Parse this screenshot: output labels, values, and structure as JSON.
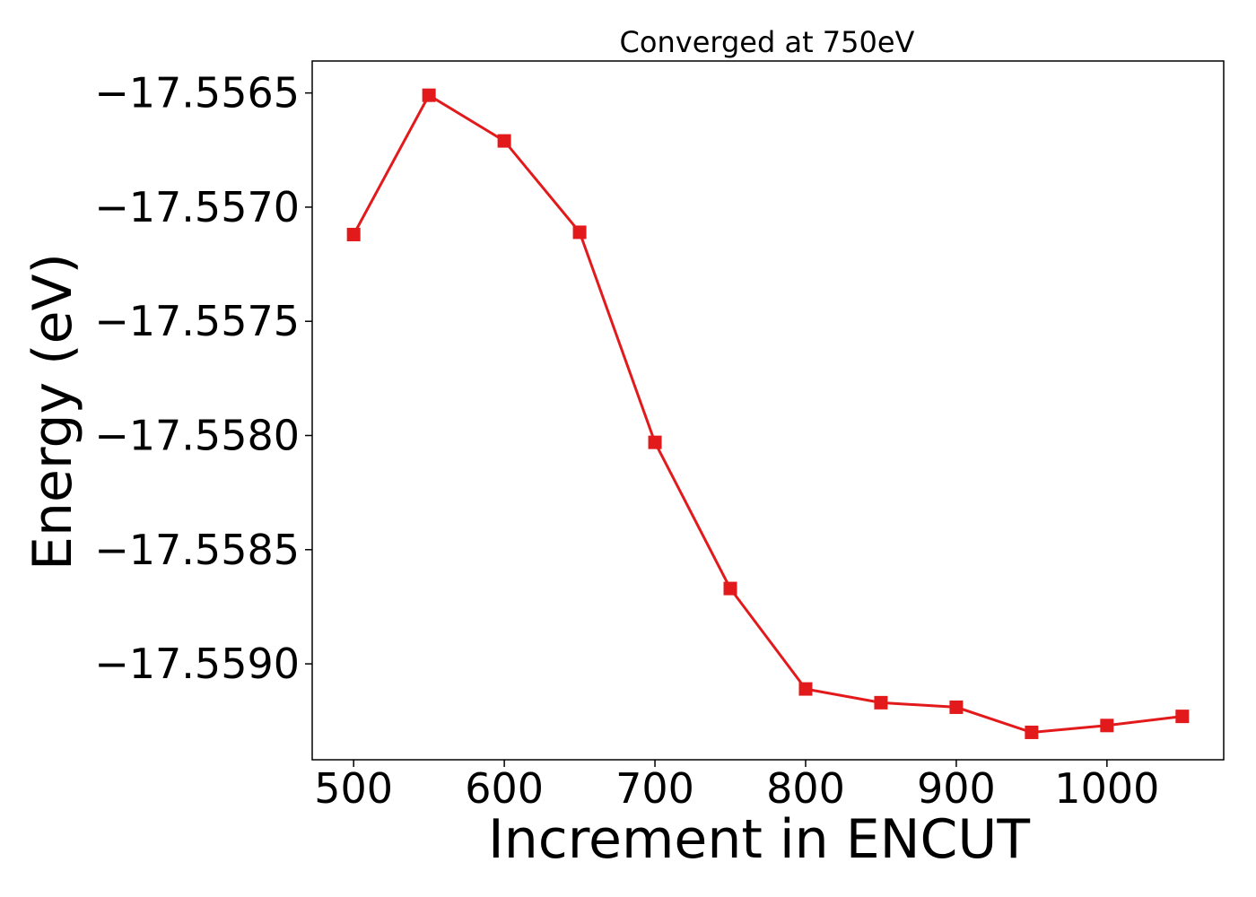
{
  "chart_data": {
    "type": "line",
    "title": "Converged at 750eV",
    "xlabel": "Increment in ENCUT",
    "ylabel": "Energy (eV)",
    "x": [
      500,
      550,
      600,
      650,
      700,
      750,
      800,
      850,
      900,
      950,
      1000,
      1050
    ],
    "series": [
      {
        "values": [
          -17.55712,
          -17.55651,
          -17.55671,
          -17.55711,
          -17.55803,
          -17.55867,
          -17.55911,
          -17.55917,
          -17.55919,
          -17.5593,
          -17.55927,
          -17.55923
        ],
        "color": "#e31a1c",
        "marker": "square"
      }
    ],
    "xlim": [
      472.5,
      1077.5
    ],
    "ylim": [
      -17.55942,
      -17.55636
    ],
    "xticks": [
      500,
      600,
      700,
      800,
      900,
      1000
    ],
    "xtick_labels": [
      "500",
      "600",
      "700",
      "800",
      "900",
      "1000"
    ],
    "yticks": [
      -17.5565,
      -17.557,
      -17.5575,
      -17.558,
      -17.5585,
      -17.559
    ],
    "ytick_labels": [
      "−17.5565",
      "−17.5570",
      "−17.5575",
      "−17.5580",
      "−17.5585",
      "−17.5590"
    ],
    "grid": false,
    "legend": "none"
  }
}
